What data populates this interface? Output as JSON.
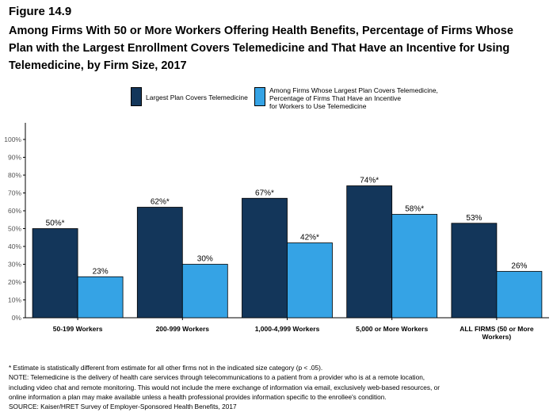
{
  "figure_label": "Figure 14.9",
  "title_lines": [
    "Among Firms With 50 or More Workers Offering Health Benefits, Percentage of Firms Whose",
    "Plan with the Largest Enrollment Covers Telemedicine and That Have an Incentive for Using",
    "Telemedicine, by Firm Size, 2017"
  ],
  "legend": [
    {
      "label": "Largest Plan Covers Telemedicine",
      "color": "#13365a"
    },
    {
      "label": "Among Firms Whose Largest Plan Covers Telemedicine,\nPercentage of Firms That Have an Incentive\nfor Workers to Use Telemedicine",
      "color": "#35a3e5"
    }
  ],
  "chart_data": {
    "type": "bar",
    "categories": [
      "50-199 Workers",
      "200-999 Workers",
      "1,000-4,999 Workers",
      "5,000 or More Workers",
      "ALL FIRMS (50 or More Workers)"
    ],
    "category_lines": [
      [
        "50-199 Workers"
      ],
      [
        "200-999 Workers"
      ],
      [
        "1,000-4,999 Workers"
      ],
      [
        "5,000 or More Workers"
      ],
      [
        "ALL FIRMS (50 or More",
        "Workers)"
      ]
    ],
    "series": [
      {
        "name": "Largest Plan Covers Telemedicine",
        "color": "#13365a",
        "values": [
          50,
          62,
          67,
          74,
          53
        ],
        "labels": [
          "50%*",
          "62%*",
          "67%*",
          "74%*",
          "53%"
        ]
      },
      {
        "name": "Among Firms Whose Largest Plan Covers Telemedicine, Percentage of Firms That Have an Incentive for Workers to Use Telemedicine",
        "color": "#35a3e5",
        "values": [
          23,
          30,
          42,
          58,
          26
        ],
        "labels": [
          "23%",
          "30%",
          "42%*",
          "58%*",
          "26%"
        ]
      }
    ],
    "yticks": [
      "0%",
      "10%",
      "20%",
      "30%",
      "40%",
      "50%",
      "60%",
      "70%",
      "80%",
      "90%",
      "100%"
    ],
    "ylim": [
      0,
      100
    ],
    "xlabel": "",
    "ylabel": "",
    "grid": false
  },
  "notes": [
    "* Estimate is statistically different from estimate for all other firms not in the indicated size category (p < .05).",
    "NOTE: Telemedicine is the delivery of health care services through telecommunications to a patient from a provider who is at a remote location,",
    "including video chat and remote monitoring. This would not include the mere exchange of information via email, exclusively web-based resources, or",
    "online information a plan may make available unless a health professional provides information specific to the enrollee's condition.",
    "SOURCE: Kaiser/HRET Survey of Employer-Sponsored Health Benefits, 2017"
  ]
}
